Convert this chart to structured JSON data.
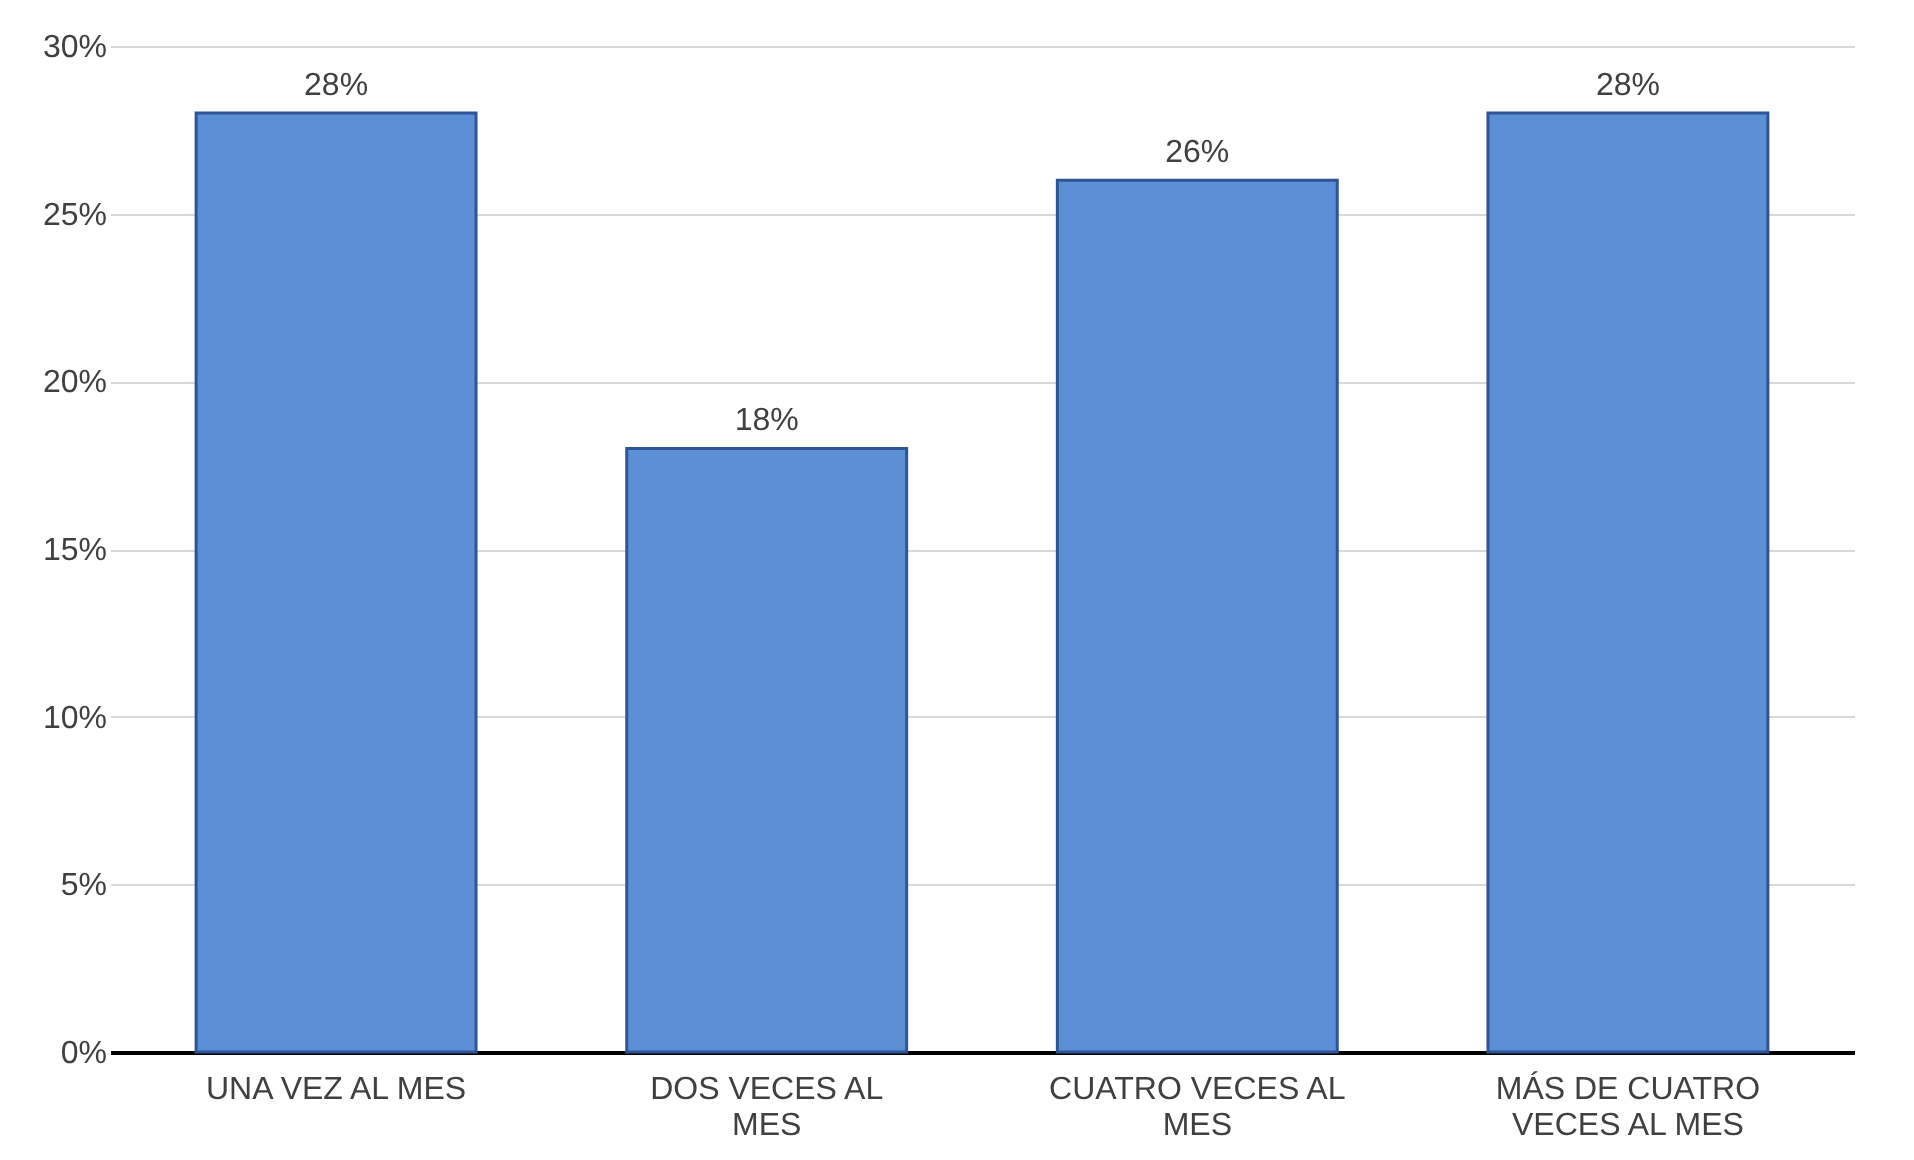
{
  "chart_data": {
    "type": "bar",
    "categories": [
      "UNA VEZ AL MES",
      "DOS VECES AL MES",
      "CUATRO VECES AL MES",
      "MÁS DE CUATRO VECES AL MES"
    ],
    "values": [
      28,
      18,
      26,
      28
    ],
    "color": "#5b8fd6",
    "value_labels": [
      "28%",
      "18%",
      "26%",
      "28%"
    ],
    "ylim": [
      0,
      30
    ],
    "yticks": [
      {
        "value": 0,
        "label": "0%"
      },
      {
        "value": 5,
        "label": "5%"
      },
      {
        "value": 10,
        "label": "10%"
      },
      {
        "value": 15,
        "label": "15%"
      },
      {
        "value": 20,
        "label": "20%"
      },
      {
        "value": 25,
        "label": "25%"
      },
      {
        "value": 30,
        "label": "30%"
      }
    ],
    "grid": true
  }
}
